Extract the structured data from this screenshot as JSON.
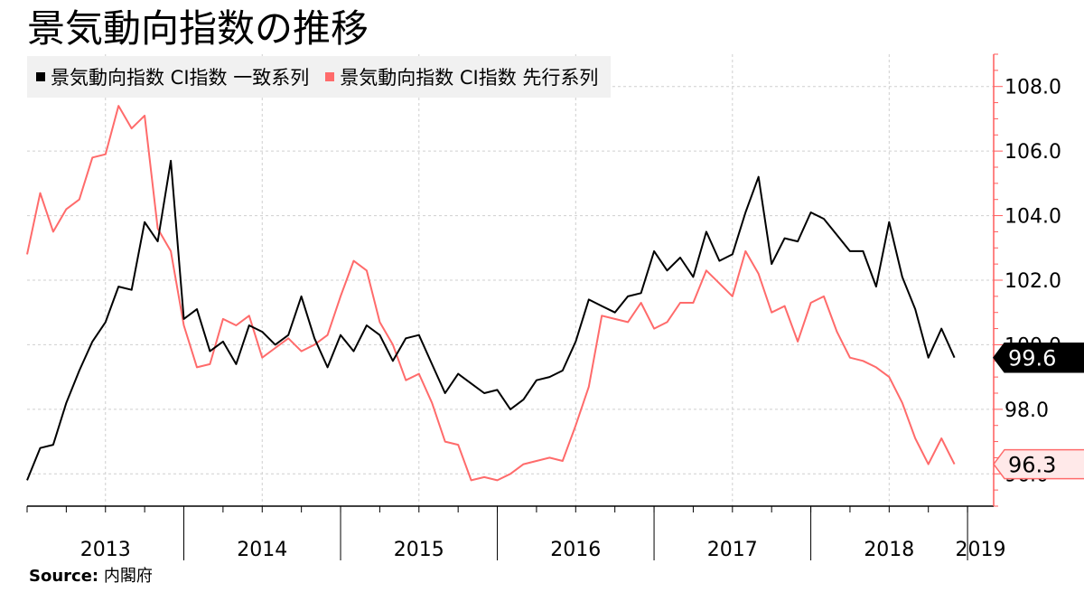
{
  "title": "景気動向指数の推移",
  "source": {
    "label": "Source:",
    "text": "内閣府"
  },
  "colors": {
    "coincident": "#000000",
    "leading": "#ff6b6b",
    "axis": "#ff5b5b",
    "grid": "#cfcfcf"
  },
  "chart_data": {
    "type": "line",
    "title": "景気動向指数の推移",
    "ylim": [
      95.0,
      109.0
    ],
    "y_ticks": [
      108.0,
      106.0,
      104.0,
      102.0,
      100.0,
      98.0,
      96.0
    ],
    "y_tick_labels": [
      "108.0",
      "106.0",
      "104.0",
      "102.0",
      "100.0",
      "98.0",
      "96.0"
    ],
    "y_axis_side": "right",
    "x_start": "2013-01",
    "x_end": "2019-03",
    "years": [
      "2013",
      "2014",
      "2015",
      "2016",
      "2017",
      "2018",
      "2019"
    ],
    "grid": true,
    "legend_placement": "top-left",
    "series": [
      {
        "name": "景気動向指数 CI指数 一致系列",
        "color": "#000000",
        "last_label": "99.6",
        "values": [
          95.8,
          96.8,
          96.9,
          98.2,
          99.2,
          100.1,
          100.7,
          101.8,
          101.7,
          103.8,
          103.2,
          105.7,
          100.8,
          101.1,
          99.8,
          100.1,
          99.4,
          100.6,
          100.4,
          100.0,
          100.3,
          101.5,
          100.2,
          99.3,
          100.3,
          99.8,
          100.6,
          100.3,
          99.5,
          100.2,
          100.3,
          99.4,
          98.5,
          99.1,
          98.8,
          98.5,
          98.6,
          98.0,
          98.3,
          98.9,
          99.0,
          99.2,
          100.1,
          101.4,
          101.2,
          101.0,
          101.5,
          101.6,
          102.9,
          102.3,
          102.7,
          102.1,
          103.5,
          102.6,
          102.8,
          104.1,
          105.2,
          102.5,
          103.3,
          103.2,
          104.1,
          103.9,
          103.4,
          102.9,
          102.9,
          101.8,
          103.8,
          102.1,
          101.1,
          99.6,
          100.5,
          99.6
        ]
      },
      {
        "name": "景気動向指数 CI指数 先行系列",
        "color": "#ff6b6b",
        "last_label": "96.3",
        "values": [
          102.8,
          104.7,
          103.5,
          104.2,
          104.5,
          105.8,
          105.9,
          107.4,
          106.7,
          107.1,
          103.6,
          102.9,
          100.6,
          99.3,
          99.4,
          100.8,
          100.6,
          100.9,
          99.6,
          99.9,
          100.2,
          99.8,
          100.0,
          100.3,
          101.5,
          102.6,
          102.3,
          100.7,
          100.0,
          98.9,
          99.1,
          98.2,
          97.0,
          96.9,
          95.8,
          95.9,
          95.8,
          96.0,
          96.3,
          96.4,
          96.5,
          96.4,
          97.5,
          98.7,
          100.9,
          100.8,
          100.7,
          101.3,
          100.5,
          100.7,
          101.3,
          101.3,
          102.3,
          101.9,
          101.5,
          102.9,
          102.2,
          101.0,
          101.2,
          100.1,
          101.3,
          101.5,
          100.4,
          99.6,
          99.5,
          99.3,
          99.0,
          98.2,
          97.1,
          96.3,
          97.1,
          96.3
        ]
      }
    ]
  }
}
